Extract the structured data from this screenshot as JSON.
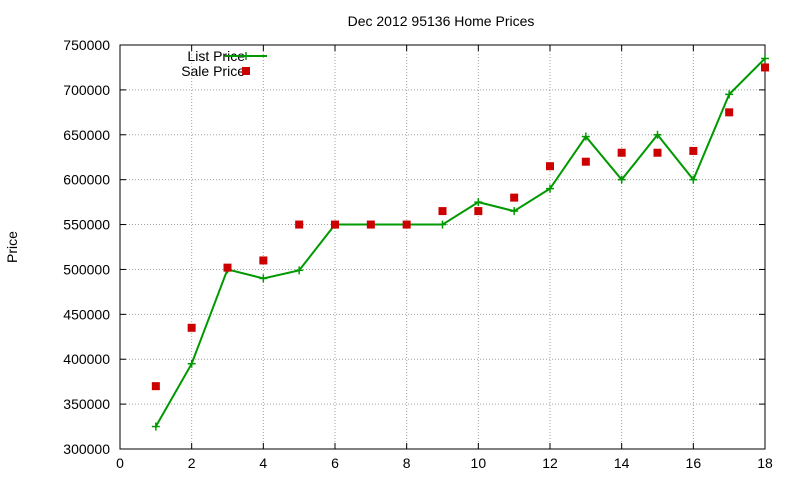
{
  "chart_data": {
    "type": "line",
    "title": "Dec 2012 95136 Home Prices",
    "xlabel": "",
    "ylabel": "Price",
    "xlim": [
      0,
      18
    ],
    "ylim": [
      300000,
      750000
    ],
    "x_ticks": [
      0,
      2,
      4,
      6,
      8,
      10,
      12,
      14,
      16,
      18
    ],
    "y_ticks": [
      300000,
      350000,
      400000,
      450000,
      500000,
      550000,
      600000,
      650000,
      700000,
      750000
    ],
    "grid": true,
    "legend_position": "top-left",
    "series": [
      {
        "name": "List Price",
        "style": "line-with-plus-markers",
        "color": "#009900",
        "x": [
          1,
          2,
          3,
          4,
          5,
          6,
          7,
          8,
          9,
          10,
          11,
          12,
          13,
          14,
          15,
          16,
          17,
          18
        ],
        "values": [
          325000,
          395000,
          500000,
          490000,
          499000,
          550000,
          550000,
          550000,
          550000,
          575000,
          565000,
          590000,
          648000,
          600000,
          650000,
          600000,
          695000,
          735000
        ]
      },
      {
        "name": "Sale Price",
        "style": "square-markers",
        "color": "#cc0000",
        "x": [
          1,
          2,
          3,
          4,
          5,
          6,
          7,
          8,
          9,
          10,
          11,
          12,
          13,
          14,
          15,
          16,
          17,
          18
        ],
        "values": [
          370000,
          435000,
          502000,
          510000,
          550000,
          550000,
          550000,
          550000,
          565000,
          565000,
          580000,
          615000,
          620000,
          630000,
          630000,
          632000,
          675000,
          725000
        ]
      }
    ]
  }
}
